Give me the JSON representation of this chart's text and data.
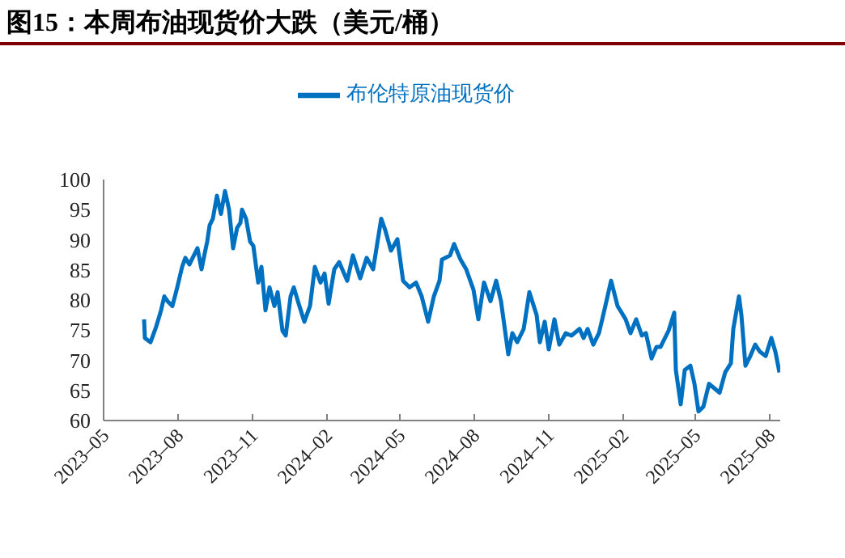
{
  "chart_data": {
    "type": "line",
    "title": "图15：本周布油现货价大跌（美元/桶）",
    "x": [
      "2023-06-20",
      "2023-06-21",
      "2023-06-28",
      "2023-07-05",
      "2023-07-11",
      "2023-07-15",
      "2023-07-19",
      "2023-07-25",
      "2023-07-31",
      "2023-08-06",
      "2023-08-10",
      "2023-08-15",
      "2023-08-19",
      "2023-08-25",
      "2023-08-30",
      "2023-09-03",
      "2023-09-06",
      "2023-09-09",
      "2023-09-13",
      "2023-09-18",
      "2023-09-23",
      "2023-09-28",
      "2023-10-03",
      "2023-10-08",
      "2023-10-13",
      "2023-10-17",
      "2023-10-19",
      "2023-10-24",
      "2023-10-29",
      "2023-11-02",
      "2023-11-08",
      "2023-11-12",
      "2023-11-17",
      "2023-11-22",
      "2023-11-28",
      "2023-12-02",
      "2023-12-08",
      "2023-12-12",
      "2023-12-18",
      "2023-12-22",
      "2023-12-28",
      "2024-01-04",
      "2024-01-11",
      "2024-01-17",
      "2024-01-24",
      "2024-01-29",
      "2024-02-03",
      "2024-02-10",
      "2024-02-16",
      "2024-02-26",
      "2024-03-04",
      "2024-03-13",
      "2024-03-21",
      "2024-03-29",
      "2024-04-03",
      "2024-04-08",
      "2024-04-13",
      "2024-04-20",
      "2024-04-28",
      "2024-05-05",
      "2024-05-13",
      "2024-05-21",
      "2024-05-28",
      "2024-06-05",
      "2024-06-12",
      "2024-06-19",
      "2024-06-22",
      "2024-07-02",
      "2024-07-07",
      "2024-07-15",
      "2024-07-22",
      "2024-07-31",
      "2024-08-06",
      "2024-08-13",
      "2024-08-21",
      "2024-08-28",
      "2024-09-03",
      "2024-09-12",
      "2024-09-17",
      "2024-09-23",
      "2024-10-01",
      "2024-10-08",
      "2024-10-17",
      "2024-10-21",
      "2024-10-27",
      "2024-11-01",
      "2024-11-08",
      "2024-11-14",
      "2024-11-22",
      "2024-11-29",
      "2024-12-09",
      "2024-12-14",
      "2024-12-19",
      "2024-12-26",
      "2025-01-02",
      "2025-01-08",
      "2025-01-17",
      "2025-01-25",
      "2025-02-04",
      "2025-02-10",
      "2025-02-17",
      "2025-02-24",
      "2025-03-01",
      "2025-03-08",
      "2025-03-14",
      "2025-03-19",
      "2025-03-29",
      "2025-04-05",
      "2025-04-07",
      "2025-04-13",
      "2025-04-18",
      "2025-04-25",
      "2025-04-30",
      "2025-05-05",
      "2025-05-11",
      "2025-05-18",
      "2025-05-25",
      "2025-05-31",
      "2025-06-07",
      "2025-06-14",
      "2025-06-17",
      "2025-06-24",
      "2025-06-27",
      "2025-07-02",
      "2025-07-08",
      "2025-07-14",
      "2025-07-20",
      "2025-07-27",
      "2025-08-03",
      "2025-08-08",
      "2025-08-13"
    ],
    "series": [
      {
        "name": "布伦特原油现货价",
        "color": "#0070c0",
        "values": [
          76.8,
          73.7,
          73.0,
          75.6,
          78.3,
          80.6,
          79.8,
          79.0,
          82.1,
          85.5,
          87.0,
          85.9,
          87.0,
          88.6,
          85.1,
          87.8,
          89.7,
          92.4,
          93.5,
          97.3,
          94.3,
          98.1,
          95.0,
          88.6,
          92.0,
          92.8,
          95.0,
          93.5,
          89.7,
          89.0,
          82.9,
          85.5,
          78.3,
          82.1,
          79.0,
          81.3,
          74.9,
          74.1,
          80.6,
          82.1,
          79.4,
          76.4,
          79.0,
          85.5,
          82.9,
          84.4,
          79.4,
          85.1,
          86.3,
          83.2,
          87.4,
          83.6,
          87.0,
          85.1,
          89.3,
          93.5,
          91.6,
          88.2,
          90.1,
          83.2,
          82.1,
          82.9,
          80.6,
          76.4,
          80.6,
          83.2,
          86.7,
          87.4,
          89.3,
          86.7,
          85.1,
          81.7,
          76.8,
          82.9,
          79.8,
          83.2,
          79.8,
          71.0,
          74.5,
          73.0,
          75.2,
          81.3,
          77.5,
          73.0,
          76.4,
          71.8,
          76.8,
          72.6,
          74.5,
          74.1,
          75.2,
          73.7,
          75.2,
          72.6,
          74.5,
          77.9,
          83.2,
          79.0,
          76.8,
          74.5,
          76.8,
          74.1,
          74.5,
          70.3,
          72.2,
          72.2,
          74.9,
          77.9,
          68.4,
          62.7,
          68.4,
          69.1,
          66.1,
          61.5,
          62.3,
          66.1,
          65.3,
          64.6,
          68.0,
          69.5,
          75.2,
          80.6,
          77.5,
          69.1,
          70.7,
          72.6,
          71.4,
          70.7,
          73.7,
          71.4,
          68.0
        ]
      }
    ],
    "xlim": [
      "2023-05-01",
      "2025-08-14"
    ],
    "xticks": [
      {
        "value": "2023-05-01",
        "label": "2023–05"
      },
      {
        "value": "2023-08-01",
        "label": "2023–08"
      },
      {
        "value": "2023-11-01",
        "label": "2023–11"
      },
      {
        "value": "2024-02-01",
        "label": "2024–02"
      },
      {
        "value": "2024-05-01",
        "label": "2024–05"
      },
      {
        "value": "2024-08-01",
        "label": "2024–08"
      },
      {
        "value": "2024-11-01",
        "label": "2024–11"
      },
      {
        "value": "2025-02-01",
        "label": "2025–02"
      },
      {
        "value": "2025-05-01",
        "label": "2025–05"
      },
      {
        "value": "2025-08-01",
        "label": "2025–08"
      }
    ],
    "ylim": [
      60,
      100
    ],
    "yticks": [
      60,
      65,
      70,
      75,
      80,
      85,
      90,
      95,
      100
    ],
    "legend": "top",
    "marker": "none"
  }
}
